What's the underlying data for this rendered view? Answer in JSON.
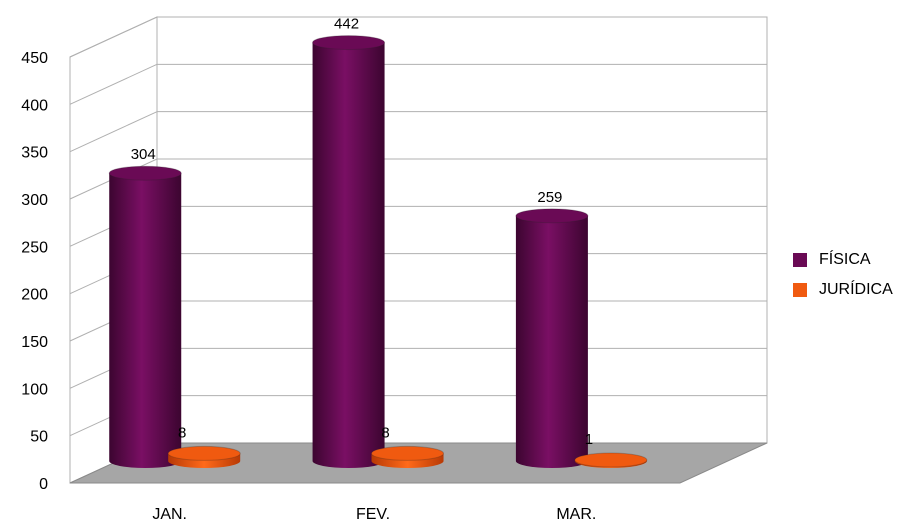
{
  "chart_data": {
    "type": "bar",
    "style": "3d-cylinder",
    "categories": [
      "JAN.",
      "FEV.",
      "MAR."
    ],
    "series": [
      {
        "name": "FÍSICA",
        "values": [
          304,
          442,
          259
        ],
        "color": "#6a0a55"
      },
      {
        "name": "JURÍDICA",
        "values": [
          8,
          8,
          1
        ],
        "color": "#f05a10"
      }
    ],
    "yticks": [
      0,
      50,
      100,
      150,
      200,
      250,
      300,
      350,
      400,
      450
    ],
    "ylim": [
      0,
      450
    ],
    "grid": true,
    "legend": "right"
  }
}
